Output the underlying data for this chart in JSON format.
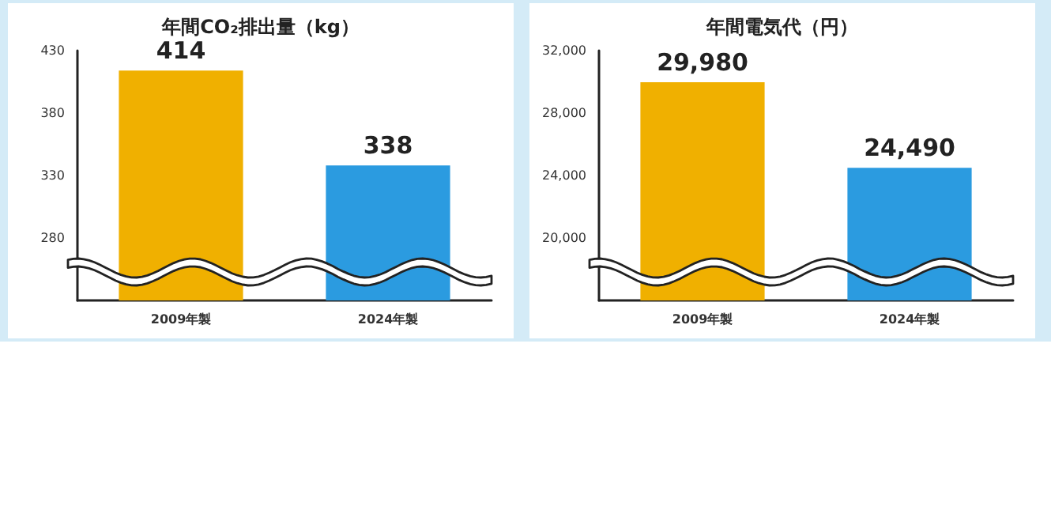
{
  "chart_data": [
    {
      "type": "bar",
      "title": "年間CO₂排出量（kg）",
      "categories": [
        "2009年製",
        "2024年製"
      ],
      "values": [
        414,
        338
      ],
      "colors": [
        "#f0b000",
        "#2b9be0"
      ],
      "ylim": [
        230,
        430
      ],
      "yticks": [
        280,
        330,
        380,
        430
      ],
      "data_labels": true,
      "grid": false
    },
    {
      "type": "bar",
      "title": "年間電気代（円）",
      "categories": [
        "2009年製",
        "2024年製"
      ],
      "values": [
        29980,
        24490
      ],
      "value_labels": [
        "29,980",
        "24,490"
      ],
      "colors": [
        "#f0b000",
        "#2b9be0"
      ],
      "ylim": [
        16000,
        32000
      ],
      "yticks": [
        {
          "value": 20000,
          "label": "20,000"
        },
        {
          "value": 24000,
          "label": "24,000"
        },
        {
          "value": 28000,
          "label": "28,000"
        },
        {
          "value": 32000,
          "label": "32,000"
        }
      ],
      "grid": false
    }
  ]
}
